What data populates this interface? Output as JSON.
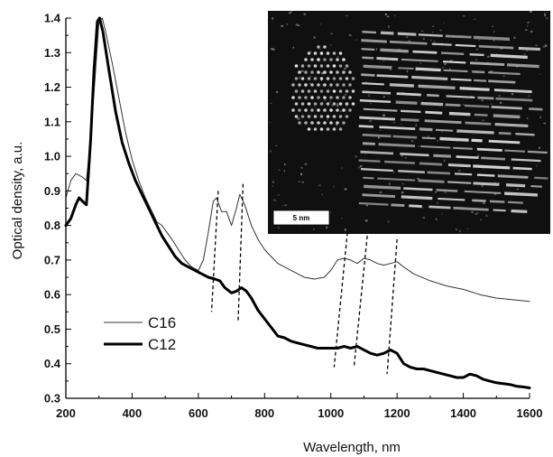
{
  "chart_data": {
    "type": "line",
    "xlabel": "Wavelength, nm",
    "ylabel": "Optical density, a.u.",
    "xlim": [
      200,
      1600
    ],
    "ylim": [
      0.3,
      1.4
    ],
    "x_ticks": [
      200,
      400,
      600,
      800,
      1000,
      1200,
      1400,
      1600
    ],
    "y_ticks": [
      0.3,
      0.4,
      0.5,
      0.6,
      0.7,
      0.8,
      0.9,
      1.0,
      1.1,
      1.2,
      1.3,
      1.4
    ],
    "legend_position": "bottom-left",
    "series": [
      {
        "name": "C16",
        "style": "thin",
        "color": "#333333",
        "points": [
          [
            200,
            0.88
          ],
          [
            215,
            0.93
          ],
          [
            230,
            0.95
          ],
          [
            250,
            0.94
          ],
          [
            262,
            0.93
          ],
          [
            275,
            1.05
          ],
          [
            290,
            1.25
          ],
          [
            300,
            1.39
          ],
          [
            310,
            1.4
          ],
          [
            320,
            1.36
          ],
          [
            340,
            1.27
          ],
          [
            360,
            1.17
          ],
          [
            380,
            1.07
          ],
          [
            400,
            0.99
          ],
          [
            420,
            0.93
          ],
          [
            440,
            0.88
          ],
          [
            460,
            0.84
          ],
          [
            475,
            0.81
          ],
          [
            490,
            0.8
          ],
          [
            505,
            0.78
          ],
          [
            520,
            0.76
          ],
          [
            540,
            0.73
          ],
          [
            560,
            0.7
          ],
          [
            580,
            0.68
          ],
          [
            600,
            0.67
          ],
          [
            615,
            0.7
          ],
          [
            630,
            0.78
          ],
          [
            645,
            0.87
          ],
          [
            655,
            0.88
          ],
          [
            670,
            0.84
          ],
          [
            685,
            0.84
          ],
          [
            700,
            0.8
          ],
          [
            715,
            0.85
          ],
          [
            725,
            0.89
          ],
          [
            740,
            0.86
          ],
          [
            760,
            0.8
          ],
          [
            780,
            0.76
          ],
          [
            800,
            0.73
          ],
          [
            820,
            0.71
          ],
          [
            840,
            0.69
          ],
          [
            860,
            0.68
          ],
          [
            880,
            0.67
          ],
          [
            900,
            0.66
          ],
          [
            920,
            0.65
          ],
          [
            950,
            0.645
          ],
          [
            980,
            0.65
          ],
          [
            1000,
            0.67
          ],
          [
            1020,
            0.7
          ],
          [
            1040,
            0.705
          ],
          [
            1060,
            0.7
          ],
          [
            1080,
            0.69
          ],
          [
            1100,
            0.705
          ],
          [
            1120,
            0.7
          ],
          [
            1140,
            0.69
          ],
          [
            1160,
            0.685
          ],
          [
            1180,
            0.69
          ],
          [
            1200,
            0.695
          ],
          [
            1220,
            0.68
          ],
          [
            1250,
            0.66
          ],
          [
            1300,
            0.64
          ],
          [
            1350,
            0.625
          ],
          [
            1400,
            0.615
          ],
          [
            1450,
            0.6
          ],
          [
            1500,
            0.59
          ],
          [
            1550,
            0.585
          ],
          [
            1600,
            0.58
          ]
        ]
      },
      {
        "name": "C12",
        "style": "thick",
        "color": "#000000",
        "points": [
          [
            200,
            0.8
          ],
          [
            215,
            0.82
          ],
          [
            230,
            0.86
          ],
          [
            240,
            0.88
          ],
          [
            250,
            0.87
          ],
          [
            262,
            0.86
          ],
          [
            275,
            1.05
          ],
          [
            285,
            1.25
          ],
          [
            295,
            1.39
          ],
          [
            302,
            1.4
          ],
          [
            312,
            1.36
          ],
          [
            330,
            1.25
          ],
          [
            350,
            1.13
          ],
          [
            370,
            1.04
          ],
          [
            390,
            0.98
          ],
          [
            410,
            0.93
          ],
          [
            430,
            0.89
          ],
          [
            450,
            0.85
          ],
          [
            470,
            0.81
          ],
          [
            490,
            0.77
          ],
          [
            510,
            0.74
          ],
          [
            530,
            0.71
          ],
          [
            550,
            0.69
          ],
          [
            570,
            0.68
          ],
          [
            590,
            0.67
          ],
          [
            610,
            0.66
          ],
          [
            630,
            0.65
          ],
          [
            650,
            0.645
          ],
          [
            665,
            0.64
          ],
          [
            680,
            0.62
          ],
          [
            700,
            0.605
          ],
          [
            715,
            0.61
          ],
          [
            730,
            0.62
          ],
          [
            745,
            0.61
          ],
          [
            760,
            0.59
          ],
          [
            780,
            0.555
          ],
          [
            800,
            0.53
          ],
          [
            820,
            0.505
          ],
          [
            840,
            0.48
          ],
          [
            860,
            0.475
          ],
          [
            880,
            0.465
          ],
          [
            900,
            0.46
          ],
          [
            920,
            0.455
          ],
          [
            940,
            0.45
          ],
          [
            960,
            0.445
          ],
          [
            980,
            0.445
          ],
          [
            1000,
            0.445
          ],
          [
            1020,
            0.445
          ],
          [
            1040,
            0.45
          ],
          [
            1060,
            0.445
          ],
          [
            1080,
            0.45
          ],
          [
            1100,
            0.44
          ],
          [
            1120,
            0.43
          ],
          [
            1140,
            0.425
          ],
          [
            1160,
            0.43
          ],
          [
            1180,
            0.44
          ],
          [
            1200,
            0.43
          ],
          [
            1220,
            0.4
          ],
          [
            1240,
            0.39
          ],
          [
            1260,
            0.385
          ],
          [
            1280,
            0.385
          ],
          [
            1300,
            0.38
          ],
          [
            1320,
            0.375
          ],
          [
            1340,
            0.37
          ],
          [
            1360,
            0.365
          ],
          [
            1380,
            0.36
          ],
          [
            1400,
            0.36
          ],
          [
            1420,
            0.37
          ],
          [
            1440,
            0.365
          ],
          [
            1460,
            0.355
          ],
          [
            1480,
            0.35
          ],
          [
            1500,
            0.345
          ],
          [
            1540,
            0.34
          ],
          [
            1560,
            0.335
          ],
          [
            1580,
            0.333
          ],
          [
            1600,
            0.33
          ]
        ]
      }
    ],
    "dashed_guides": [
      {
        "x_top": 660,
        "y_top": 0.9,
        "x_bottom": 640,
        "y_bottom": 0.55
      },
      {
        "x_top": 735,
        "y_top": 0.92,
        "x_bottom": 720,
        "y_bottom": 0.52
      },
      {
        "x_top": 1050,
        "y_top": 0.78,
        "x_bottom": 1010,
        "y_bottom": 0.39
      },
      {
        "x_top": 1110,
        "y_top": 0.77,
        "x_bottom": 1070,
        "y_bottom": 0.39
      },
      {
        "x_top": 1200,
        "y_top": 0.76,
        "x_bottom": 1170,
        "y_bottom": 0.37
      }
    ]
  },
  "inset": {
    "scale_bar_label": "5 nm",
    "background": "#101010"
  }
}
